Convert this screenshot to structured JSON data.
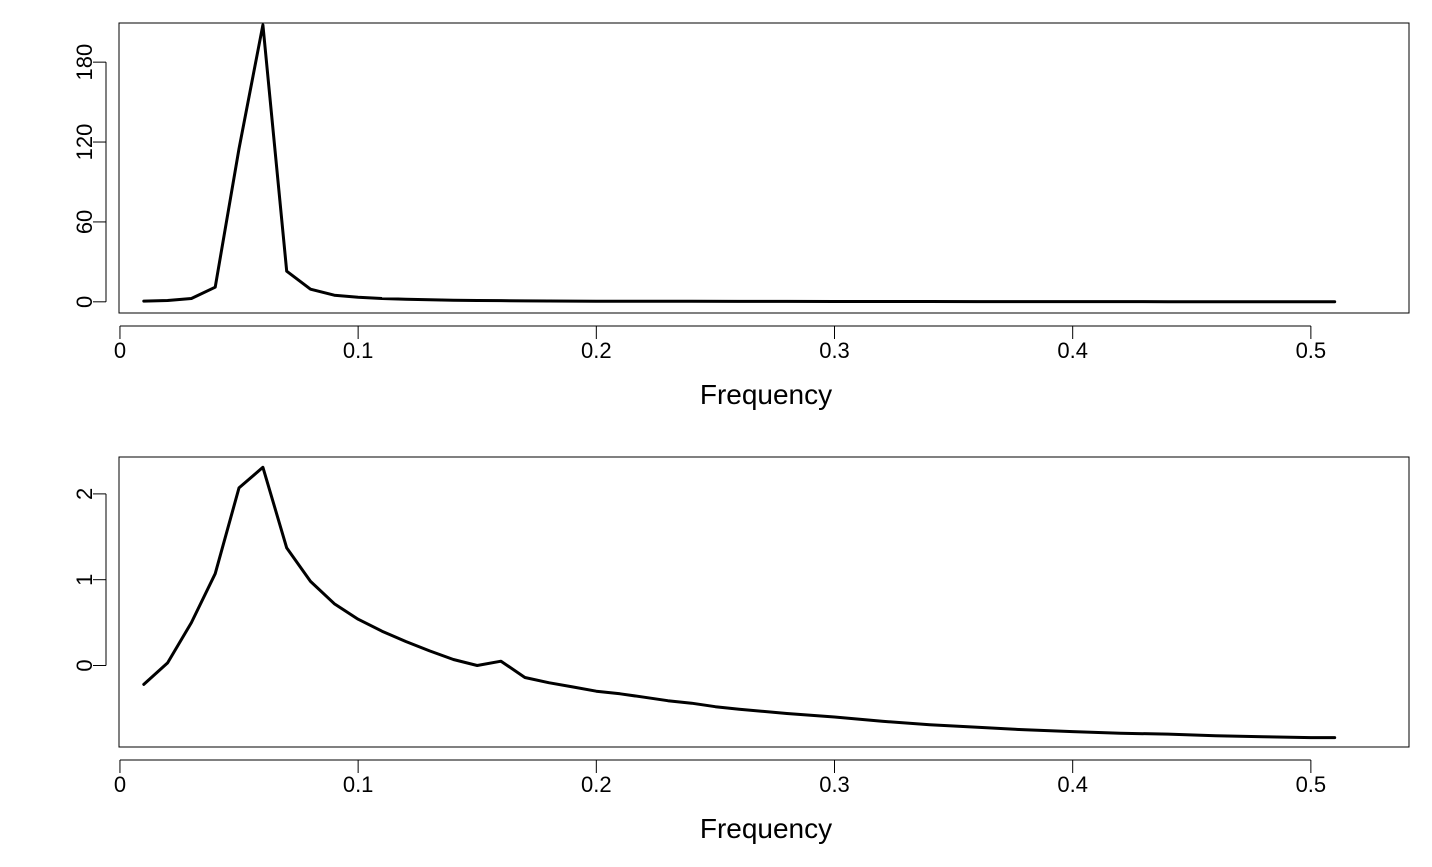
{
  "chart_data": [
    {
      "type": "line",
      "title": "",
      "xlabel": "Frequency",
      "ylabel": "",
      "xlim": [
        -0.0004,
        0.5412
      ],
      "ylim": [
        -8.4,
        209.4
      ],
      "xticks": [
        0,
        0.1,
        0.2,
        0.3,
        0.4,
        0.5
      ],
      "xtick_labels": [
        "0",
        "0.1",
        "0.2",
        "0.3",
        "0.4",
        "0.5"
      ],
      "yticks": [
        0,
        60,
        120,
        180
      ],
      "ytick_labels": [
        "0",
        "60",
        "120",
        "180"
      ],
      "grid": false,
      "legend": "none",
      "line_color": "#000000",
      "series": [
        {
          "x": [
            0.01,
            0.02,
            0.03,
            0.04,
            0.05,
            0.06,
            0.07,
            0.08,
            0.09,
            0.1,
            0.11,
            0.12,
            0.13,
            0.14,
            0.15,
            0.16,
            0.17,
            0.18,
            0.19,
            0.2,
            0.22,
            0.24,
            0.26,
            0.28,
            0.3,
            0.32,
            0.34,
            0.36,
            0.38,
            0.4,
            0.42,
            0.44,
            0.46,
            0.48,
            0.5,
            0.51
          ],
          "y": [
            0.5,
            1.0,
            2.5,
            11.0,
            115.0,
            208.0,
            23.0,
            9.5,
            5.0,
            3.5,
            2.5,
            2.0,
            1.5,
            1.2,
            1.0,
            0.9,
            0.7,
            0.6,
            0.5,
            0.45,
            0.4,
            0.35,
            0.3,
            0.28,
            0.25,
            0.22,
            0.2,
            0.18,
            0.16,
            0.15,
            0.13,
            0.12,
            0.11,
            0.1,
            0.1,
            0.1
          ]
        }
      ]
    },
    {
      "type": "line",
      "title": "",
      "xlabel": "Frequency",
      "ylabel": "",
      "xlim": [
        -0.0004,
        0.5412
      ],
      "ylim": [
        -0.95,
        2.43
      ],
      "xticks": [
        0,
        0.1,
        0.2,
        0.3,
        0.4,
        0.5
      ],
      "xtick_labels": [
        "0",
        "0.1",
        "0.2",
        "0.3",
        "0.4",
        "0.5"
      ],
      "yticks": [
        0,
        1,
        2
      ],
      "ytick_labels": [
        "0",
        "1",
        "2"
      ],
      "grid": false,
      "legend": "none",
      "line_color": "#000000",
      "series": [
        {
          "x": [
            0.01,
            0.02,
            0.03,
            0.04,
            0.05,
            0.06,
            0.07,
            0.08,
            0.09,
            0.1,
            0.11,
            0.12,
            0.13,
            0.14,
            0.15,
            0.16,
            0.17,
            0.18,
            0.19,
            0.2,
            0.21,
            0.22,
            0.23,
            0.24,
            0.25,
            0.26,
            0.28,
            0.3,
            0.32,
            0.34,
            0.36,
            0.38,
            0.4,
            0.42,
            0.44,
            0.46,
            0.48,
            0.5,
            0.51
          ],
          "y": [
            -0.22,
            0.03,
            0.5,
            1.07,
            2.07,
            2.31,
            1.37,
            0.98,
            0.72,
            0.54,
            0.4,
            0.28,
            0.17,
            0.07,
            0.0,
            0.05,
            -0.14,
            -0.2,
            -0.25,
            -0.3,
            -0.33,
            -0.37,
            -0.41,
            -0.44,
            -0.48,
            -0.51,
            -0.56,
            -0.6,
            -0.65,
            -0.69,
            -0.72,
            -0.75,
            -0.77,
            -0.79,
            -0.8,
            -0.82,
            -0.83,
            -0.84,
            -0.84
          ]
        }
      ]
    }
  ]
}
